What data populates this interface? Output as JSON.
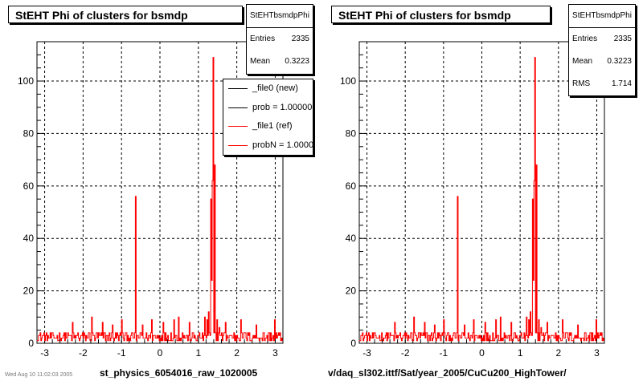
{
  "colors": {
    "ref": "#ff0000",
    "new": "#000000"
  },
  "left_panel": {
    "title": "StEHT Phi of clusters for bsmdp",
    "stats": {
      "name": "StEHTbsmdpPhi",
      "entries_label": "Entries",
      "entries": "2335",
      "mean_label": "Mean",
      "mean": "0.3223"
    },
    "legend": [
      "_file0 (new)",
      "prob = 1.000000",
      "_file1 (ref)",
      "probN = 1.000000"
    ],
    "xtitle": "st_physics_6054016_raw_1020005"
  },
  "right_panel": {
    "title": "StEHT Phi of clusters for bsmdp",
    "stats": {
      "name": "StEHTbsmdpPhi",
      "entries_label": "Entries",
      "entries": "2335",
      "mean_label": "Mean",
      "mean": "0.3223",
      "rms_label": "RMS",
      "rms": "1.714"
    },
    "xtitle": "v/daq_sl302.ittf/Sat/year_2005/CuCu200_HighTower/"
  },
  "footnote": "Wed Aug 10 11:02:03 2005",
  "chart_data": [
    {
      "type": "line",
      "title": "StEHT Phi of clusters for bsmdp",
      "xlabel": "st_physics_6054016_raw_1020005",
      "ylabel": "",
      "xlim": [
        -3.2,
        3.2
      ],
      "ylim": [
        0,
        115
      ],
      "xticks": [
        "-3",
        "-2",
        "-1",
        "0",
        "1",
        "2",
        "3"
      ],
      "yticks": [
        "0",
        "20",
        "40",
        "60",
        "80",
        "100"
      ],
      "grid": true,
      "legend_position": "top-right",
      "series": [
        {
          "name": "_file1 (ref)",
          "color": "#ff0000",
          "baseline": [
            1,
            4
          ],
          "x": [
            -2.28,
            -1.77,
            -1.49,
            -1.24,
            -0.99,
            -0.63,
            -0.46,
            -0.21,
            0.09,
            0.37,
            0.48,
            0.77,
            1.17,
            1.22,
            1.27,
            1.32,
            1.35,
            1.37,
            1.38,
            1.4,
            1.42,
            1.45,
            1.49,
            1.56,
            1.7,
            2.1,
            2.5,
            2.98
          ],
          "y": [
            8,
            10,
            8,
            7,
            9,
            56,
            7,
            9,
            8,
            9,
            10,
            8,
            10,
            9,
            12,
            55,
            24,
            62,
            43,
            109,
            68,
            2,
            9,
            6,
            8,
            9,
            7,
            9
          ]
        }
      ]
    },
    {
      "type": "line",
      "title": "StEHT Phi of clusters for bsmdp",
      "xlabel": "v/daq_sl302.ittf/Sat/year_2005/CuCu200_HighTower/",
      "ylabel": "",
      "xlim": [
        -3.2,
        3.2
      ],
      "ylim": [
        0,
        115
      ],
      "xticks": [
        "-3",
        "-2",
        "-1",
        "0",
        "1",
        "2",
        "3"
      ],
      "yticks": [
        "0",
        "20",
        "40",
        "60",
        "80",
        "100"
      ],
      "grid": true,
      "series": [
        {
          "name": "",
          "color": "#ff0000",
          "baseline": [
            1,
            4
          ],
          "x": [
            -2.28,
            -1.77,
            -1.49,
            -1.24,
            -0.99,
            -0.63,
            -0.46,
            -0.21,
            0.09,
            0.37,
            0.48,
            0.77,
            1.17,
            1.22,
            1.27,
            1.32,
            1.35,
            1.37,
            1.38,
            1.4,
            1.42,
            1.45,
            1.49,
            1.56,
            1.7,
            2.1,
            2.5,
            2.98
          ],
          "y": [
            8,
            10,
            8,
            7,
            9,
            56,
            7,
            9,
            8,
            9,
            10,
            8,
            10,
            9,
            12,
            55,
            24,
            62,
            43,
            109,
            68,
            2,
            9,
            6,
            8,
            9,
            7,
            9
          ]
        }
      ]
    }
  ]
}
